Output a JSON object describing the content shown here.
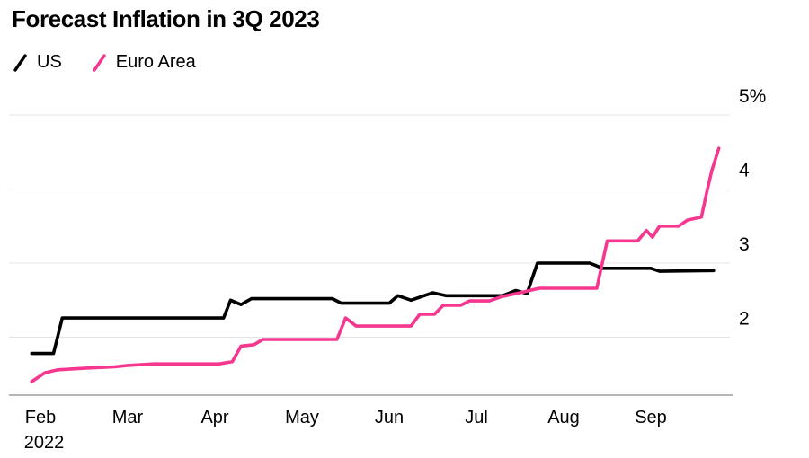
{
  "title": "Forecast Inflation in 3Q 2023",
  "legend": {
    "items": [
      {
        "label": "US",
        "color": "#000000"
      },
      {
        "label": "Euro Area",
        "color": "#f5378f"
      }
    ]
  },
  "colors": {
    "grid": "#e4e4e4",
    "axis": "#8a8a8a",
    "background": "#ffffff",
    "text": "#000000"
  },
  "chart_data": {
    "type": "line",
    "title": "Forecast Inflation in 3Q 2023",
    "x_axis": {
      "tick_labels": [
        "Feb",
        "Mar",
        "Apr",
        "May",
        "Jun",
        "Jul",
        "Aug",
        "Sep"
      ],
      "sub_label": "2022"
    },
    "y_axis": {
      "ticks": [
        2,
        3,
        4,
        5
      ],
      "tick_labels": [
        "2",
        "3",
        "4",
        "5%"
      ],
      "range": [
        1.2,
        5.3
      ]
    },
    "legend_position": "top-left",
    "grid": "horizontal",
    "series": [
      {
        "name": "US",
        "color": "#000000",
        "points": [
          [
            -0.1,
            1.78
          ],
          [
            0.15,
            1.78
          ],
          [
            0.25,
            2.26
          ],
          [
            2.1,
            2.26
          ],
          [
            2.18,
            2.5
          ],
          [
            2.3,
            2.44
          ],
          [
            2.42,
            2.52
          ],
          [
            3.35,
            2.52
          ],
          [
            3.45,
            2.46
          ],
          [
            4.0,
            2.46
          ],
          [
            4.1,
            2.56
          ],
          [
            4.25,
            2.5
          ],
          [
            4.5,
            2.6
          ],
          [
            4.65,
            2.56
          ],
          [
            5.3,
            2.56
          ],
          [
            5.45,
            2.63
          ],
          [
            5.58,
            2.59
          ],
          [
            5.7,
            3.0
          ],
          [
            6.3,
            3.0
          ],
          [
            6.45,
            2.93
          ],
          [
            7.0,
            2.93
          ],
          [
            7.1,
            2.89
          ],
          [
            7.72,
            2.9
          ]
        ]
      },
      {
        "name": "Euro Area",
        "color": "#f5378f",
        "points": [
          [
            -0.1,
            1.4
          ],
          [
            0.05,
            1.52
          ],
          [
            0.2,
            1.56
          ],
          [
            0.5,
            1.58
          ],
          [
            0.85,
            1.6
          ],
          [
            1.0,
            1.62
          ],
          [
            1.3,
            1.64
          ],
          [
            2.05,
            1.64
          ],
          [
            2.2,
            1.67
          ],
          [
            2.3,
            1.88
          ],
          [
            2.45,
            1.9
          ],
          [
            2.55,
            1.97
          ],
          [
            3.4,
            1.97
          ],
          [
            3.5,
            2.26
          ],
          [
            3.62,
            2.15
          ],
          [
            4.25,
            2.15
          ],
          [
            4.35,
            2.31
          ],
          [
            4.52,
            2.31
          ],
          [
            4.62,
            2.43
          ],
          [
            4.82,
            2.43
          ],
          [
            4.92,
            2.49
          ],
          [
            5.15,
            2.49
          ],
          [
            5.3,
            2.55
          ],
          [
            5.5,
            2.6
          ],
          [
            5.72,
            2.66
          ],
          [
            6.38,
            2.66
          ],
          [
            6.5,
            3.3
          ],
          [
            6.85,
            3.3
          ],
          [
            6.95,
            3.44
          ],
          [
            7.02,
            3.35
          ],
          [
            7.1,
            3.5
          ],
          [
            7.32,
            3.5
          ],
          [
            7.42,
            3.58
          ],
          [
            7.58,
            3.62
          ],
          [
            7.64,
            3.95
          ],
          [
            7.7,
            4.25
          ],
          [
            7.78,
            4.55
          ]
        ]
      }
    ]
  }
}
